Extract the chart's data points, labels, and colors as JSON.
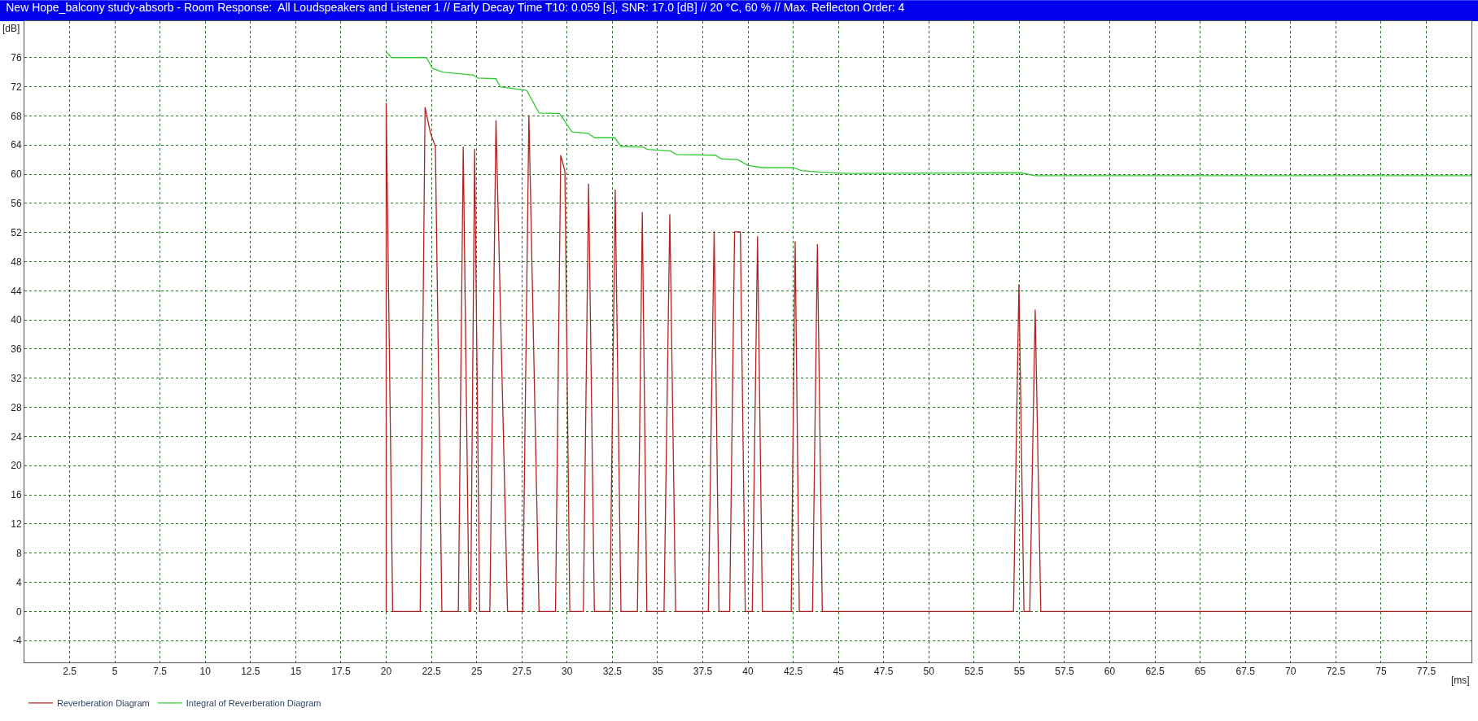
{
  "chart_data": {
    "type": "line",
    "title": "New Hope_balcony study-absorb - Room Response:  All Loudspeakers and Listener 1 // Early Decay Time T10: 0.059 [s], SNR: 17.0 [dB] // 20 °C, 60 % // Max. Reflecton Order: 4",
    "xlabel": "[ms]",
    "ylabel": "[dB]",
    "xlim": [
      0,
      80
    ],
    "ylim": [
      -7,
      81
    ],
    "xticks": [
      2.5,
      5,
      7.5,
      10,
      12.5,
      15,
      17.5,
      20,
      22.5,
      25,
      27.5,
      30,
      32.5,
      35,
      37.5,
      40,
      42.5,
      45,
      47.5,
      50,
      52.5,
      55,
      57.5,
      60,
      62.5,
      65,
      67.5,
      70,
      72.5,
      75,
      77.5
    ],
    "yticks": [
      -4,
      0,
      4,
      8,
      12,
      16,
      20,
      24,
      28,
      32,
      36,
      40,
      44,
      48,
      52,
      56,
      60,
      64,
      68,
      72,
      76
    ],
    "grid": true,
    "legend": "bottom left",
    "marker": "none",
    "line_style": "solid",
    "series": [
      {
        "name": "Reverberation Diagram",
        "color": "#b22222",
        "x": [
          20.0,
          20.0,
          20.36,
          21.88,
          22.15,
          22.45,
          22.72,
          23.08,
          23.99,
          24.26,
          24.58,
          24.67,
          24.89,
          25.17,
          25.73,
          26.07,
          26.71,
          27.55,
          27.89,
          28.45,
          29.36,
          29.65,
          29.88,
          30.15,
          30.9,
          31.19,
          31.51,
          32.37,
          32.66,
          32.98,
          33.89,
          34.16,
          34.41,
          35.36,
          35.68,
          36.0,
          37.81,
          38.13,
          38.4,
          38.99,
          39.26,
          39.58,
          39.85,
          40.24,
          40.53,
          40.8,
          42.39,
          42.61,
          42.84,
          43.57,
          43.84,
          44.11,
          54.68,
          54.98,
          55.26,
          55.58,
          55.88,
          56.19,
          80
        ],
        "values": [
          0,
          69.8,
          0,
          0,
          69.2,
          65.6,
          63.8,
          0,
          0,
          63.8,
          0,
          0,
          63.5,
          0,
          0,
          67.4,
          0,
          0,
          68.1,
          0,
          0,
          62.6,
          60.4,
          0,
          0,
          58.7,
          0,
          0,
          57.9,
          0,
          0,
          54.8,
          0,
          0,
          54.5,
          0,
          0,
          52.2,
          0,
          0,
          52.1,
          52.1,
          0,
          0,
          51.5,
          0,
          0,
          50.8,
          0,
          0,
          50.4,
          0,
          0,
          44.9,
          0,
          0,
          41.4,
          0,
          0
        ]
      },
      {
        "name": "Integral of Reverberation Diagram",
        "color": "#33cc33",
        "x": [
          20.0,
          20.29,
          22.22,
          22.56,
          23.13,
          24.83,
          25.05,
          26.07,
          26.3,
          27.77,
          28.45,
          29.59,
          30.27,
          31.17,
          31.51,
          32.64,
          32.98,
          34.23,
          34.46,
          35.7,
          36.04,
          38.2,
          38.54,
          39.44,
          40.01,
          40.8,
          42.5,
          42.95,
          43.97,
          45.47,
          55.07,
          55.88,
          80
        ],
        "values": [
          76.8,
          76,
          76,
          74.5,
          74,
          73.6,
          73.2,
          73.1,
          72,
          71.5,
          68.4,
          68.3,
          65.8,
          65.6,
          65,
          65,
          63.8,
          63.7,
          63.4,
          63.2,
          62.7,
          62.6,
          62.1,
          62,
          61.2,
          60.9,
          60.9,
          60.5,
          60.3,
          60.1,
          60.2,
          59.8,
          59.8
        ]
      }
    ]
  }
}
